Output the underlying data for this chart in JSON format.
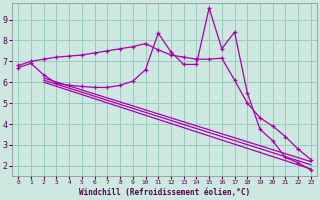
{
  "xlabel": "Windchill (Refroidissement éolien,°C)",
  "background_color": "#cce8e0",
  "grid_color": "#99ccbb",
  "line_color": "#aa00aa",
  "xlim": [
    -0.5,
    23.5
  ],
  "ylim": [
    1.5,
    9.8
  ],
  "xticks": [
    0,
    1,
    2,
    3,
    4,
    5,
    6,
    7,
    8,
    9,
    10,
    11,
    12,
    13,
    14,
    15,
    16,
    17,
    18,
    19,
    20,
    21,
    22,
    23
  ],
  "yticks": [
    2,
    3,
    4,
    5,
    6,
    7,
    8,
    9
  ],
  "series1_x": [
    0,
    1,
    2,
    3,
    4,
    5,
    6,
    7,
    8,
    9,
    10,
    11,
    12,
    13,
    14,
    15,
    16,
    17,
    18,
    19,
    20,
    21,
    22,
    23
  ],
  "series1_y": [
    6.7,
    6.9,
    6.35,
    5.95,
    5.85,
    5.8,
    5.75,
    5.75,
    5.85,
    6.05,
    6.6,
    8.35,
    7.45,
    6.85,
    6.85,
    9.55,
    7.6,
    8.4,
    5.5,
    3.75,
    3.2,
    2.4,
    2.15,
    1.8
  ],
  "series2_x": [
    0,
    1,
    2,
    3,
    4,
    5,
    6,
    7,
    8,
    9,
    10,
    11,
    12,
    13,
    14,
    15,
    16,
    17,
    18,
    19,
    20,
    21,
    22,
    23
  ],
  "series2_y": [
    6.8,
    7.0,
    7.1,
    7.2,
    7.25,
    7.3,
    7.4,
    7.5,
    7.6,
    7.7,
    7.85,
    7.55,
    7.3,
    7.2,
    7.1,
    7.1,
    7.15,
    6.1,
    5.0,
    4.3,
    3.9,
    3.4,
    2.8,
    2.3
  ],
  "series3_x": [
    2,
    23
  ],
  "series3_y": [
    6.1,
    2.05
  ],
  "series4_x": [
    2,
    23
  ],
  "series4_y": [
    6.2,
    2.2
  ],
  "series5_x": [
    2,
    23
  ],
  "series5_y": [
    6.0,
    1.85
  ]
}
